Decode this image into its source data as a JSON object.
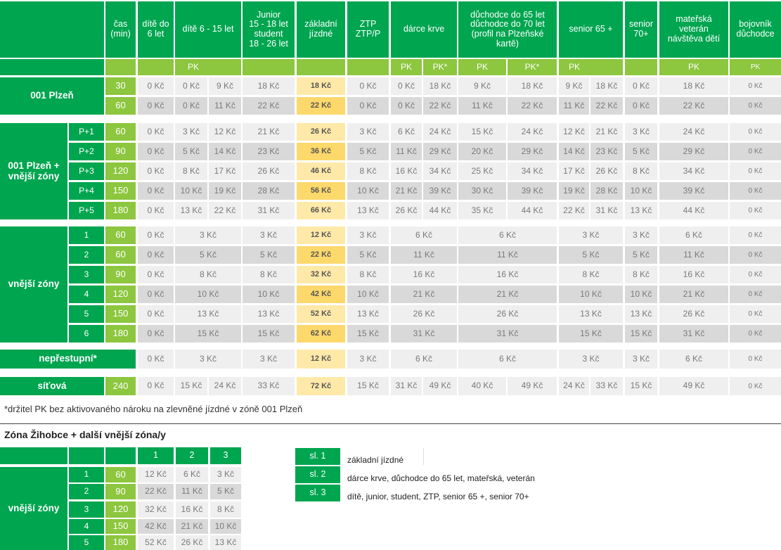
{
  "main": {
    "headers": [
      "čas\n(min)",
      "dítě do\n6 let",
      "dítě 6 - 15 let",
      "Junior\n15 - 18 let\nstudent\n18 - 26 let",
      "základní\njízdné",
      "ZTP\nZTP/P",
      "dárce krve",
      "důchodce do 65 let\ndůchodce do 70 let\n(profil na Plzeňské\nkartě)",
      "senior 65 +",
      "senior\n70+",
      "mateřská\nveterán\nnávštěva dětí",
      "bojovník\ndůchodce"
    ],
    "pk_label": "PK",
    "pk_star_label": "PK*",
    "zone_labels": {
      "plzen": "001 Plzeň",
      "plzen_outer": "001 Plzeň +\nvnější zóny",
      "outer": "vnější zóny",
      "nonstop": "nepřestupní*",
      "network": "síťová"
    },
    "p_labels": [
      "P+1",
      "P+2",
      "P+3",
      "P+4",
      "P+5"
    ],
    "outer_labels": [
      "1",
      "2",
      "3",
      "4",
      "5",
      "6"
    ],
    "times_plzen": [
      "30",
      "60"
    ],
    "times_plzen_outer": [
      "60",
      "90",
      "120",
      "150",
      "180"
    ],
    "times_outer": [
      "60",
      "60",
      "90",
      "120",
      "150",
      "180"
    ],
    "time_network": "240",
    "rows_plzen": [
      [
        "0 Kč",
        "0 Kč",
        "9 Kč",
        "18 Kč",
        "18 Kč",
        "0 Kč",
        "0 Kč",
        "18 Kč",
        "9 Kč",
        "18 Kč",
        "9 Kč",
        "18 Kč",
        "0 Kč",
        "18 Kč",
        "0 Kč"
      ],
      [
        "0 Kč",
        "0 Kč",
        "11 Kč",
        "22 Kč",
        "22 Kč",
        "0 Kč",
        "0 Kč",
        "22 Kč",
        "11 Kč",
        "22 Kč",
        "11 Kč",
        "22 Kč",
        "0 Kč",
        "22 Kč",
        "0 Kč"
      ]
    ],
    "rows_plzen_outer": [
      [
        "0 Kč",
        "3 Kč",
        "12 Kč",
        "21 Kč",
        "26 Kč",
        "3 Kč",
        "6 Kč",
        "24 Kč",
        "15 Kč",
        "24 Kč",
        "12 Kč",
        "21 Kč",
        "3 Kč",
        "24 Kč",
        "0 Kč"
      ],
      [
        "0 Kč",
        "5 Kč",
        "14 Kč",
        "23 Kč",
        "36 Kč",
        "5 Kč",
        "11 Kč",
        "29 Kč",
        "20 Kč",
        "29 Kč",
        "14 Kč",
        "23 Kč",
        "5 Kč",
        "29 Kč",
        "0 Kč"
      ],
      [
        "0 Kč",
        "8 Kč",
        "17 Kč",
        "26 Kč",
        "46 Kč",
        "8 Kč",
        "16 Kč",
        "34 Kč",
        "25 Kč",
        "34 Kč",
        "17 Kč",
        "26 Kč",
        "8 Kč",
        "34 Kč",
        "0 Kč"
      ],
      [
        "0 Kč",
        "10 Kč",
        "19 Kč",
        "28 Kč",
        "56 Kč",
        "10 Kč",
        "21 Kč",
        "39 Kč",
        "30 Kč",
        "39 Kč",
        "19 Kč",
        "28 Kč",
        "10 Kč",
        "39 Kč",
        "0 Kč"
      ],
      [
        "0 Kč",
        "13 Kč",
        "22 Kč",
        "31 Kč",
        "66 Kč",
        "13 Kč",
        "26 Kč",
        "44 Kč",
        "35 Kč",
        "44 Kč",
        "22 Kč",
        "31 Kč",
        "13 Kč",
        "44 Kč",
        "0 Kč"
      ]
    ],
    "rows_outer": [
      [
        "0 Kč",
        "3 Kč",
        "3 Kč",
        "12 Kč",
        "3 Kč",
        "6 Kč",
        "6 Kč",
        "3 Kč",
        "3 Kč",
        "6 Kč",
        "0 Kč"
      ],
      [
        "0 Kč",
        "5 Kč",
        "5 Kč",
        "22 Kč",
        "5 Kč",
        "11 Kč",
        "11 Kč",
        "5 Kč",
        "5 Kč",
        "11 Kč",
        "0 Kč"
      ],
      [
        "0 Kč",
        "8 Kč",
        "8 Kč",
        "32 Kč",
        "8 Kč",
        "16 Kč",
        "16 Kč",
        "8 Kč",
        "8 Kč",
        "16 Kč",
        "0 Kč"
      ],
      [
        "0 Kč",
        "10 Kč",
        "10 Kč",
        "42 Kč",
        "10 Kč",
        "21 Kč",
        "21 Kč",
        "10 Kč",
        "10 Kč",
        "21 Kč",
        "0 Kč"
      ],
      [
        "0 Kč",
        "13 Kč",
        "13 Kč",
        "52 Kč",
        "13 Kč",
        "26 Kč",
        "26 Kč",
        "13 Kč",
        "13 Kč",
        "26 Kč",
        "0 Kč"
      ],
      [
        "0 Kč",
        "15 Kč",
        "15 Kč",
        "62 Kč",
        "15 Kč",
        "31 Kč",
        "31 Kč",
        "15 Kč",
        "15 Kč",
        "31 Kč",
        "0 Kč"
      ]
    ],
    "row_nonstop": [
      "0 Kč",
      "3 Kč",
      "3 Kč",
      "12 Kč",
      "3 Kč",
      "6 Kč",
      "6 Kč",
      "3 Kč",
      "3 Kč",
      "6 Kč",
      "0 Kč"
    ],
    "row_network": [
      "0 Kč",
      "15 Kč",
      "24 Kč",
      "33 Kč",
      "72 Kč",
      "15 Kč",
      "31 Kč",
      "49 Kč",
      "40 Kč",
      "49 Kč",
      "24 Kč",
      "33 Kč",
      "15 Kč",
      "49 Kč",
      "0 Kč"
    ]
  },
  "footnote": "*držitel PK bez aktivovaného nároku na zlevněné jízdné v zóně 001 Plzeň",
  "zihobce": {
    "title": "Zóna Žihobce + další vnější zóna/y",
    "col_headers": [
      "1",
      "2",
      "3"
    ],
    "zone_label": "vnější zóny",
    "rows": [
      {
        "zone": "1",
        "time": "60",
        "v": [
          "12 Kč",
          "6 Kč",
          "3 Kč"
        ]
      },
      {
        "zone": "2",
        "time": "90",
        "v": [
          "22 Kč",
          "11 Kč",
          "5 Kč"
        ]
      },
      {
        "zone": "3",
        "time": "120",
        "v": [
          "32 Kč",
          "16 Kč",
          "8 Kč"
        ]
      },
      {
        "zone": "4",
        "time": "150",
        "v": [
          "42 Kč",
          "21 Kč",
          "10 Kč"
        ]
      },
      {
        "zone": "5",
        "time": "180",
        "v": [
          "52 Kč",
          "26 Kč",
          "13 Kč"
        ]
      }
    ]
  },
  "legend": [
    {
      "code": "sl. 1",
      "text": "základní jízdné"
    },
    {
      "code": "sl. 2",
      "text": "dárce krve, důchodce do 65 let, mateřská, veterán"
    },
    {
      "code": "sl. 3",
      "text": "dítě, junior, student, ZTP, senior 65 +, senior 70+"
    }
  ],
  "colors": {
    "green": "#00a550",
    "light_green": "#8dc63f",
    "yellow": "#fdd86b",
    "light_yellow": "#ffe9a8"
  }
}
